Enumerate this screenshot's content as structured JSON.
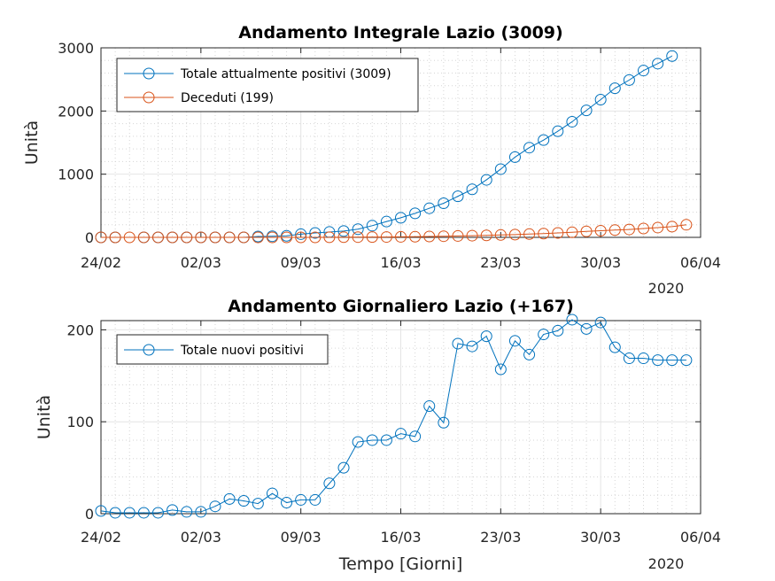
{
  "chart_data": [
    {
      "type": "line",
      "title": "Andamento Integrale Lazio (3009)",
      "ylabel": "Unità",
      "xlabel": "",
      "x_tick_labels": [
        "24/02",
        "02/03",
        "09/03",
        "16/03",
        "23/03",
        "30/03",
        "06/04"
      ],
      "x_year_label": "2020",
      "y_tick_labels": [
        "0",
        "1000",
        "2000",
        "3000"
      ],
      "ylim": [
        0,
        3000
      ],
      "yticks": [
        0,
        1000,
        2000,
        3000
      ],
      "x_range_days": [
        0,
        42
      ],
      "grid": true,
      "legend_position": "top-left",
      "series": [
        {
          "name": "Totale attualmente positivi (3009)",
          "color": "#0072bd",
          "x": [
            0,
            1,
            3,
            4,
            5,
            6,
            7,
            8,
            9,
            10,
            11,
            12,
            13,
            14,
            15,
            16,
            17,
            18,
            19,
            20,
            21,
            22,
            23,
            24,
            25,
            26,
            27,
            28,
            29,
            30,
            31,
            32,
            33,
            34,
            35,
            36,
            37,
            38,
            39,
            40
          ],
          "values": [
            0,
            0,
            0,
            0,
            0,
            0,
            0,
            0,
            0,
            0,
            14,
            18,
            25,
            50,
            70,
            85,
            100,
            130,
            185,
            250,
            310,
            380,
            460,
            540,
            650,
            760,
            910,
            1080,
            1270,
            1420,
            1540,
            1680,
            1830,
            2010,
            2180,
            2360,
            2490,
            2640,
            2750,
            2870
          ]
        },
        {
          "name": "Deceduti (199)",
          "color": "#d95319",
          "x": [
            0,
            1,
            2,
            3,
            4,
            5,
            6,
            7,
            8,
            9,
            10,
            11,
            12,
            13,
            14,
            15,
            16,
            17,
            18,
            19,
            20,
            21,
            22,
            23,
            24,
            25,
            26,
            27,
            28,
            29,
            30,
            31,
            32,
            33,
            34,
            35,
            36,
            37,
            38,
            39,
            40,
            41
          ],
          "values": [
            0,
            0,
            0,
            0,
            0,
            0,
            0,
            0,
            0,
            0,
            0,
            0,
            0,
            0,
            0,
            0,
            2,
            3,
            4,
            5,
            6,
            8,
            10,
            14,
            18,
            22,
            27,
            32,
            38,
            44,
            52,
            60,
            70,
            80,
            95,
            105,
            115,
            125,
            140,
            155,
            170,
            199
          ]
        }
      ]
    },
    {
      "type": "line",
      "title": "Andamento Giornaliero Lazio (+167)",
      "ylabel": "Unità",
      "xlabel": "Tempo [Giorni]",
      "x_tick_labels": [
        "24/02",
        "02/03",
        "09/03",
        "16/03",
        "23/03",
        "30/03",
        "06/04"
      ],
      "x_year_label": "2020",
      "y_tick_labels": [
        "0",
        "100",
        "200"
      ],
      "ylim": [
        0,
        210
      ],
      "yticks": [
        0,
        100,
        200
      ],
      "x_range_days": [
        0,
        42
      ],
      "grid": true,
      "legend_position": "top-left",
      "series": [
        {
          "name": "Totale nuovi positivi",
          "color": "#0072bd",
          "x": [
            0,
            1,
            2,
            3,
            4,
            5,
            6,
            7,
            8,
            9,
            10,
            11,
            12,
            13,
            14,
            15,
            16,
            17,
            18,
            19,
            20,
            21,
            22,
            23,
            24,
            25,
            26,
            27,
            28,
            29,
            30,
            31,
            32,
            33,
            34,
            35,
            36,
            37,
            38,
            39,
            40,
            41
          ],
          "values": [
            3,
            1,
            1,
            1,
            1,
            4,
            2,
            2,
            8,
            16,
            14,
            11,
            22,
            12,
            15,
            15,
            33,
            50,
            78,
            80,
            80,
            87,
            84,
            117,
            99,
            185,
            182,
            193,
            157,
            188,
            173,
            195,
            199,
            211,
            201,
            208,
            181,
            169,
            169,
            167,
            167,
            167
          ]
        }
      ]
    }
  ]
}
